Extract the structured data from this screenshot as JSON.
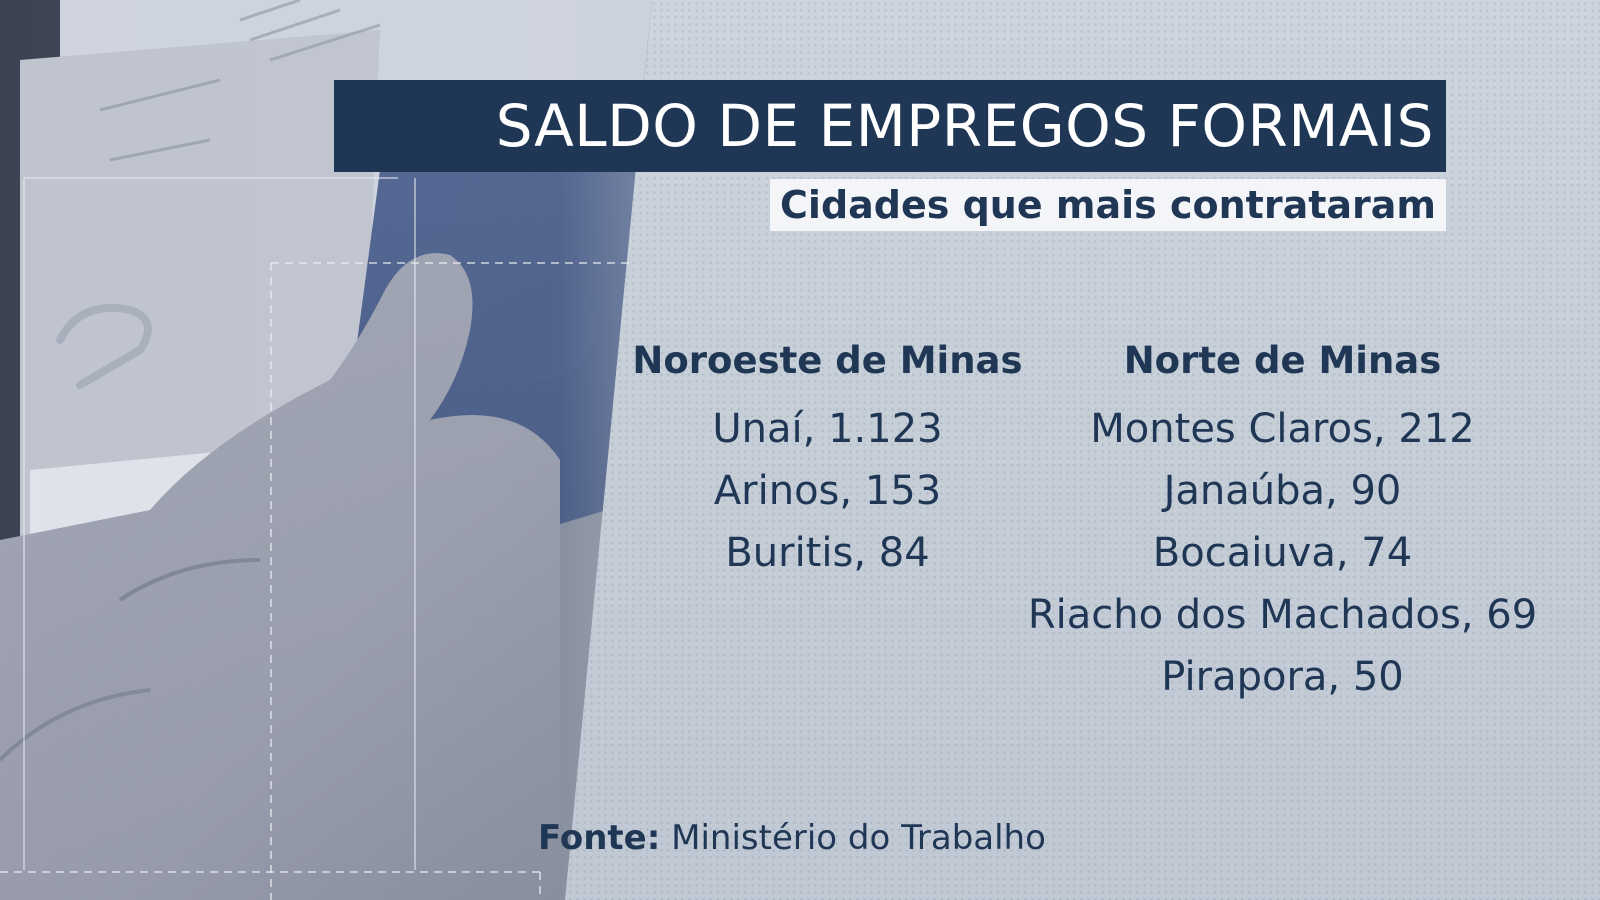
{
  "header": {
    "title": "SALDO DE EMPREGOS FORMAIS",
    "subtitle": "Cidades que mais contrataram"
  },
  "regions": [
    {
      "name": "Noroeste de Minas",
      "cities": [
        "Unaí, 1.123",
        "Arinos, 153",
        "Buritis, 84"
      ]
    },
    {
      "name": "Norte de Minas",
      "cities": [
        "Montes Claros, 212",
        "Janaúba, 90",
        "Bocaiuva, 74",
        "Riacho dos Machados, 69",
        "Pirapora, 50"
      ]
    }
  ],
  "source": {
    "label": "Fonte:",
    "text": "Ministério do Trabalho"
  },
  "colors": {
    "navy": "#1f3654",
    "background": "#c7cfd9",
    "subtitle_band": "#f3f5f8"
  }
}
